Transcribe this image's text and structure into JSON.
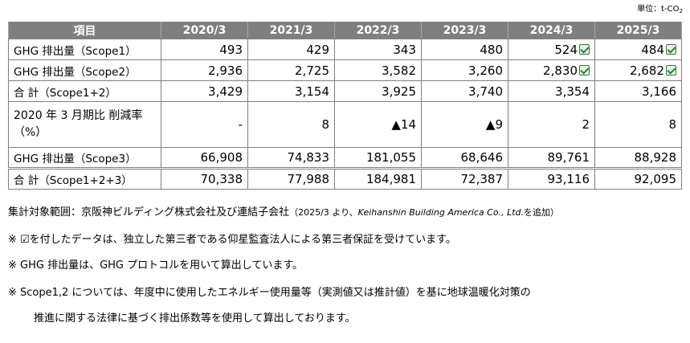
{
  "unit_label": "単位：t-CO",
  "unit_sub": "2",
  "table": {
    "headers": [
      "項目",
      "2020/3",
      "2021/3",
      "2022/3",
      "2023/3",
      "2024/3",
      "2025/3"
    ],
    "rows": [
      {
        "label": "GHG 排出量（Scope1）",
        "values": [
          "493",
          "429",
          "343",
          "480",
          "524",
          "484"
        ],
        "checked": [
          false,
          false,
          false,
          false,
          true,
          true
        ]
      },
      {
        "label": "GHG 排出量（Scope2）",
        "values": [
          "2,936",
          "2,725",
          "3,582",
          "3,260",
          "2,830",
          "2,682"
        ],
        "checked": [
          false,
          false,
          false,
          false,
          true,
          true
        ]
      },
      {
        "label": "合 計（Scope1+2）",
        "values": [
          "3,429",
          "3,154",
          "3,925",
          "3,740",
          "3,354",
          "3,166"
        ],
        "checked": [
          false,
          false,
          false,
          false,
          false,
          false
        ]
      },
      {
        "label": "2020 年 3 月期比 削減率（%）",
        "values": [
          "-",
          "8",
          "▲14",
          "▲9",
          "2",
          "8"
        ],
        "checked": [
          false,
          false,
          false,
          false,
          false,
          false
        ]
      },
      {
        "label": "GHG 排出量（Scope3）",
        "values": [
          "66,908",
          "74,833",
          "181,055",
          "68,646",
          "89,761",
          "88,928"
        ],
        "checked": [
          false,
          false,
          false,
          false,
          false,
          false
        ]
      },
      {
        "label": "合 計（Scope1+2+3）",
        "values": [
          "70,338",
          "77,988",
          "184,981",
          "72,387",
          "93,116",
          "92,095"
        ],
        "checked": [
          false,
          false,
          false,
          false,
          false,
          false
        ]
      }
    ]
  },
  "notes": {
    "scope_main": "集計対象範囲：京阪神ビルディング株式会社及び連結子会社",
    "scope_paren_open": "（2025/3 より、",
    "scope_company": "Keihanshin Building America Co., Ltd.",
    "scope_paren_close": "を追加）",
    "note1": "※ ☑を付したデータは、独立した第三者である仰星監査法人による第三者保証を受けています。",
    "note2": "※ GHG 排出量は、GHG プロトコルを用いて算出しています。",
    "note3": "※ Scope1,2 については、年度中に使用したエネルギー使用量等（実測値又は推計値）を基に地球温暖化対策の",
    "note3_cont": "推進に関する法律に基づく排出係数等を使用して算出しております。"
  }
}
